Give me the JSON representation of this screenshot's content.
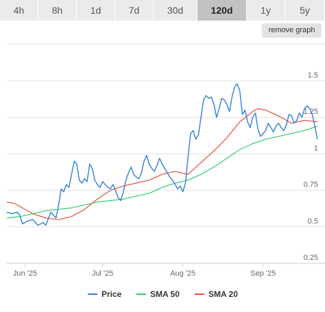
{
  "range_tabs": [
    {
      "label": "4h",
      "active": false
    },
    {
      "label": "8h",
      "active": false
    },
    {
      "label": "1d",
      "active": false
    },
    {
      "label": "7d",
      "active": false
    },
    {
      "label": "30d",
      "active": false
    },
    {
      "label": "120d",
      "active": true
    },
    {
      "label": "1y",
      "active": false
    },
    {
      "label": "5y",
      "active": false
    }
  ],
  "remove_graph_label": "remove graph",
  "colors": {
    "price": "#2f7ed8",
    "sma50": "#2ecc71",
    "sma20": "#e74c3c",
    "active_tab": "#c2c2c2",
    "tab": "#ebebeb"
  },
  "chart_data": {
    "type": "line",
    "x_range": [
      0,
      120
    ],
    "ylim": [
      0.25,
      1.5
    ],
    "y_ticks": [
      "1.5",
      "1.25",
      "1",
      "0.75",
      "0.5",
      "0.25"
    ],
    "x_ticks": [
      {
        "label": "Jun '25",
        "x": 7
      },
      {
        "label": "Jul '25",
        "x": 37
      },
      {
        "label": "Aug '25",
        "x": 68
      },
      {
        "label": "Sep '25",
        "x": 99
      }
    ],
    "grid": true,
    "legend_position": "bottom",
    "series": [
      {
        "name": "Price",
        "key": "price",
        "points": [
          [
            0,
            0.6
          ],
          [
            2,
            0.59
          ],
          [
            4,
            0.6
          ],
          [
            5,
            0.58
          ],
          [
            6,
            0.52
          ],
          [
            8,
            0.54
          ],
          [
            10,
            0.55
          ],
          [
            11,
            0.53
          ],
          [
            12,
            0.51
          ],
          [
            14,
            0.53
          ],
          [
            15,
            0.51
          ],
          [
            17,
            0.6
          ],
          [
            19,
            0.56
          ],
          [
            20,
            0.65
          ],
          [
            21,
            0.76
          ],
          [
            22,
            0.74
          ],
          [
            23,
            0.79
          ],
          [
            24,
            0.77
          ],
          [
            25,
            0.86
          ],
          [
            26,
            0.95
          ],
          [
            27,
            0.93
          ],
          [
            28,
            0.82
          ],
          [
            29,
            0.8
          ],
          [
            30,
            0.83
          ],
          [
            31,
            0.81
          ],
          [
            32,
            0.93
          ],
          [
            33,
            0.9
          ],
          [
            34,
            0.82
          ],
          [
            35,
            0.79
          ],
          [
            36,
            0.77
          ],
          [
            37,
            0.81
          ],
          [
            38,
            0.79
          ],
          [
            39,
            0.77
          ],
          [
            40,
            0.76
          ],
          [
            41,
            0.79
          ],
          [
            42,
            0.75
          ],
          [
            43,
            0.7
          ],
          [
            44,
            0.68
          ],
          [
            45,
            0.74
          ],
          [
            46,
            0.82
          ],
          [
            47,
            0.87
          ],
          [
            48,
            0.91
          ],
          [
            49,
            0.86
          ],
          [
            50,
            0.84
          ],
          [
            51,
            0.83
          ],
          [
            52,
            0.87
          ],
          [
            53,
            0.95
          ],
          [
            54,
            0.99
          ],
          [
            55,
            0.93
          ],
          [
            56,
            0.9
          ],
          [
            57,
            0.88
          ],
          [
            58,
            0.92
          ],
          [
            59,
            0.97
          ],
          [
            60,
            0.93
          ],
          [
            61,
            0.9
          ],
          [
            62,
            0.87
          ],
          [
            63,
            0.84
          ],
          [
            64,
            0.82
          ],
          [
            65,
            0.79
          ],
          [
            66,
            0.76
          ],
          [
            67,
            0.78
          ],
          [
            68,
            0.74
          ],
          [
            69,
            0.8
          ],
          [
            70,
            0.98
          ],
          [
            71,
            1.14
          ],
          [
            72,
            1.16
          ],
          [
            73,
            1.1
          ],
          [
            74,
            1.13
          ],
          [
            75,
            1.25
          ],
          [
            76,
            1.37
          ],
          [
            77,
            1.4
          ],
          [
            78,
            1.38
          ],
          [
            79,
            1.39
          ],
          [
            80,
            1.34
          ],
          [
            81,
            1.25
          ],
          [
            82,
            1.31
          ],
          [
            83,
            1.38
          ],
          [
            84,
            1.37
          ],
          [
            85,
            1.34
          ],
          [
            86,
            1.29
          ],
          [
            87,
            1.39
          ],
          [
            88,
            1.46
          ],
          [
            89,
            1.48
          ],
          [
            90,
            1.43
          ],
          [
            91,
            1.27
          ],
          [
            92,
            1.3
          ],
          [
            93,
            1.22
          ],
          [
            94,
            1.18
          ],
          [
            95,
            1.25
          ],
          [
            96,
            1.28
          ],
          [
            97,
            1.17
          ],
          [
            98,
            1.12
          ],
          [
            99,
            1.14
          ],
          [
            100,
            1.16
          ],
          [
            101,
            1.21
          ],
          [
            102,
            1.18
          ],
          [
            103,
            1.15
          ],
          [
            104,
            1.19
          ],
          [
            105,
            1.21
          ],
          [
            106,
            1.18
          ],
          [
            107,
            1.16
          ],
          [
            108,
            1.2
          ],
          [
            109,
            1.27
          ],
          [
            110,
            1.26
          ],
          [
            111,
            1.21
          ],
          [
            112,
            1.23
          ],
          [
            113,
            1.28
          ],
          [
            114,
            1.25
          ],
          [
            115,
            1.31
          ],
          [
            116,
            1.33
          ],
          [
            117,
            1.31
          ],
          [
            118,
            1.27
          ],
          [
            119,
            1.19
          ],
          [
            120,
            1.1
          ]
        ]
      },
      {
        "name": "SMA 50",
        "key": "sma50",
        "points": [
          [
            0,
            0.56
          ],
          [
            5,
            0.57
          ],
          [
            10,
            0.59
          ],
          [
            15,
            0.61
          ],
          [
            20,
            0.62
          ],
          [
            25,
            0.63
          ],
          [
            30,
            0.65
          ],
          [
            35,
            0.67
          ],
          [
            40,
            0.68
          ],
          [
            45,
            0.69
          ],
          [
            50,
            0.71
          ],
          [
            55,
            0.73
          ],
          [
            60,
            0.77
          ],
          [
            65,
            0.8
          ],
          [
            70,
            0.82
          ],
          [
            75,
            0.86
          ],
          [
            80,
            0.91
          ],
          [
            85,
            0.97
          ],
          [
            90,
            1.03
          ],
          [
            95,
            1.07
          ],
          [
            100,
            1.1
          ],
          [
            105,
            1.12
          ],
          [
            110,
            1.14
          ],
          [
            115,
            1.16
          ],
          [
            120,
            1.19
          ]
        ]
      },
      {
        "name": "SMA 20",
        "key": "sma20",
        "points": [
          [
            0,
            0.67
          ],
          [
            3,
            0.66
          ],
          [
            6,
            0.63
          ],
          [
            10,
            0.59
          ],
          [
            15,
            0.56
          ],
          [
            20,
            0.55
          ],
          [
            25,
            0.57
          ],
          [
            30,
            0.62
          ],
          [
            35,
            0.69
          ],
          [
            40,
            0.75
          ],
          [
            45,
            0.78
          ],
          [
            50,
            0.8
          ],
          [
            55,
            0.82
          ],
          [
            60,
            0.86
          ],
          [
            65,
            0.88
          ],
          [
            70,
            0.86
          ],
          [
            75,
            0.94
          ],
          [
            80,
            1.02
          ],
          [
            85,
            1.11
          ],
          [
            90,
            1.22
          ],
          [
            95,
            1.29
          ],
          [
            97,
            1.31
          ],
          [
            100,
            1.3
          ],
          [
            105,
            1.26
          ],
          [
            110,
            1.21
          ],
          [
            115,
            1.23
          ],
          [
            120,
            1.22
          ]
        ]
      }
    ]
  }
}
